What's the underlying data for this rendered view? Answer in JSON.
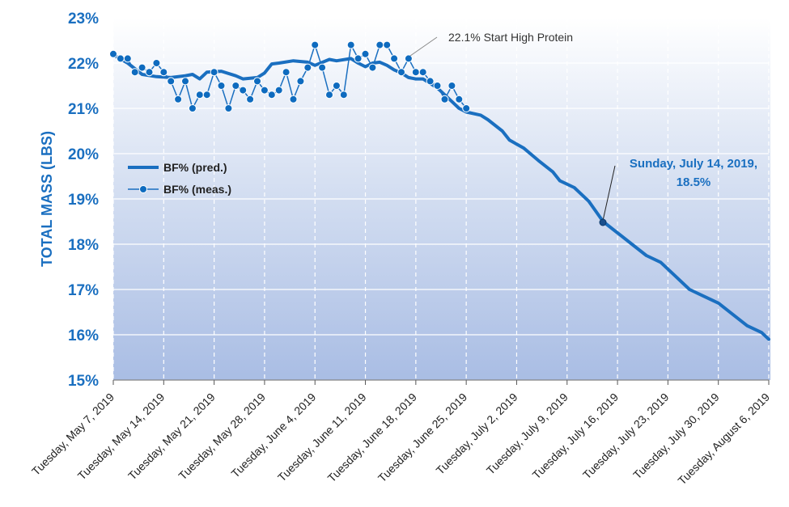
{
  "chart_data": {
    "type": "line",
    "ylabel": "TOTAL MASS (LBS)",
    "ylim": [
      15,
      23
    ],
    "yticks": [
      "15%",
      "16%",
      "17%",
      "18%",
      "19%",
      "20%",
      "21%",
      "22%",
      "23%"
    ],
    "xlim": [
      "2019-05-07",
      "2019-08-06"
    ],
    "xticks": [
      "Tuesday, May 7, 2019",
      "Tuesday, May 14, 2019",
      "Tuesday, May 21, 2019",
      "Tuesday, May 28, 2019",
      "Tuesday, June 4, 2019",
      "Tuesday, June 11, 2019",
      "Tuesday, June 18, 2019",
      "Tuesday, June 25, 2019",
      "Tuesday, July 2, 2019",
      "Tuesday, July 9, 2019",
      "Tuesday, July 16, 2019",
      "Tuesday, July 23, 2019",
      "Tuesday, July 30, 2019",
      "Tuesday, August 6, 2019"
    ],
    "grid": true,
    "legend_position": "left",
    "colors": {
      "series": "#1a6fc0",
      "marker": "#0e6bbf",
      "text_accent": "#1a6fc0"
    },
    "series": [
      {
        "name": "BF% (pred.)",
        "style": "line",
        "points": [
          [
            "2019-05-07",
            22.18
          ],
          [
            "2019-05-09",
            22.0
          ],
          [
            "2019-05-11",
            21.75
          ],
          [
            "2019-05-13",
            21.7
          ],
          [
            "2019-05-15",
            21.68
          ],
          [
            "2019-05-17",
            21.72
          ],
          [
            "2019-05-18",
            21.75
          ],
          [
            "2019-05-19",
            21.65
          ],
          [
            "2019-05-20",
            21.8
          ],
          [
            "2019-05-22",
            21.82
          ],
          [
            "2019-05-24",
            21.72
          ],
          [
            "2019-05-25",
            21.65
          ],
          [
            "2019-05-27",
            21.68
          ],
          [
            "2019-05-28",
            21.78
          ],
          [
            "2019-05-29",
            21.98
          ],
          [
            "2019-05-30",
            22.0
          ],
          [
            "2019-06-01",
            22.05
          ],
          [
            "2019-06-03",
            22.02
          ],
          [
            "2019-06-04",
            21.95
          ],
          [
            "2019-06-06",
            22.08
          ],
          [
            "2019-06-07",
            22.05
          ],
          [
            "2019-06-09",
            22.1
          ],
          [
            "2019-06-10",
            22.0
          ],
          [
            "2019-06-11",
            21.92
          ],
          [
            "2019-06-12",
            22.0
          ],
          [
            "2019-06-13",
            22.02
          ],
          [
            "2019-06-14",
            21.95
          ],
          [
            "2019-06-15",
            21.85
          ],
          [
            "2019-06-16",
            21.78
          ],
          [
            "2019-06-17",
            21.68
          ],
          [
            "2019-06-18",
            21.65
          ],
          [
            "2019-06-19",
            21.65
          ],
          [
            "2019-06-20",
            21.55
          ],
          [
            "2019-06-21",
            21.45
          ],
          [
            "2019-06-22",
            21.3
          ],
          [
            "2019-06-23",
            21.15
          ],
          [
            "2019-06-24",
            21.0
          ],
          [
            "2019-06-25",
            20.92
          ],
          [
            "2019-06-27",
            20.85
          ],
          [
            "2019-06-28",
            20.75
          ],
          [
            "2019-06-30",
            20.5
          ],
          [
            "2019-07-01",
            20.3
          ],
          [
            "2019-07-03",
            20.12
          ],
          [
            "2019-07-05",
            19.85
          ],
          [
            "2019-07-07",
            19.6
          ],
          [
            "2019-07-08",
            19.4
          ],
          [
            "2019-07-10",
            19.25
          ],
          [
            "2019-07-12",
            18.95
          ],
          [
            "2019-07-14",
            18.5
          ],
          [
            "2019-07-16",
            18.25
          ],
          [
            "2019-07-18",
            18.0
          ],
          [
            "2019-07-20",
            17.75
          ],
          [
            "2019-07-22",
            17.6
          ],
          [
            "2019-07-24",
            17.3
          ],
          [
            "2019-07-26",
            17.0
          ],
          [
            "2019-07-28",
            16.85
          ],
          [
            "2019-07-30",
            16.7
          ],
          [
            "2019-08-01",
            16.45
          ],
          [
            "2019-08-03",
            16.2
          ],
          [
            "2019-08-05",
            16.05
          ],
          [
            "2019-08-06",
            15.9
          ]
        ]
      },
      {
        "name": "BF% (meas.)",
        "style": "line+markers",
        "points": [
          [
            "2019-05-07",
            22.2
          ],
          [
            "2019-05-08",
            22.1
          ],
          [
            "2019-05-09",
            22.1
          ],
          [
            "2019-05-10",
            21.8
          ],
          [
            "2019-05-11",
            21.9
          ],
          [
            "2019-05-12",
            21.8
          ],
          [
            "2019-05-13",
            22.0
          ],
          [
            "2019-05-14",
            21.8
          ],
          [
            "2019-05-15",
            21.6
          ],
          [
            "2019-05-16",
            21.2
          ],
          [
            "2019-05-17",
            21.6
          ],
          [
            "2019-05-18",
            21.0
          ],
          [
            "2019-05-19",
            21.3
          ],
          [
            "2019-05-20",
            21.3
          ],
          [
            "2019-05-21",
            21.8
          ],
          [
            "2019-05-22",
            21.5
          ],
          [
            "2019-05-23",
            21.0
          ],
          [
            "2019-05-24",
            21.5
          ],
          [
            "2019-05-25",
            21.4
          ],
          [
            "2019-05-26",
            21.2
          ],
          [
            "2019-05-27",
            21.6
          ],
          [
            "2019-05-28",
            21.4
          ],
          [
            "2019-05-29",
            21.3
          ],
          [
            "2019-05-30",
            21.4
          ],
          [
            "2019-05-31",
            21.8
          ],
          [
            "2019-06-01",
            21.2
          ],
          [
            "2019-06-02",
            21.6
          ],
          [
            "2019-06-03",
            21.9
          ],
          [
            "2019-06-04",
            22.4
          ],
          [
            "2019-06-05",
            21.9
          ],
          [
            "2019-06-06",
            21.3
          ],
          [
            "2019-06-07",
            21.5
          ],
          [
            "2019-06-08",
            21.3
          ],
          [
            "2019-06-09",
            22.4
          ],
          [
            "2019-06-10",
            22.1
          ],
          [
            "2019-06-11",
            22.2
          ],
          [
            "2019-06-12",
            21.9
          ],
          [
            "2019-06-13",
            22.4
          ],
          [
            "2019-06-14",
            22.4
          ],
          [
            "2019-06-15",
            22.1
          ],
          [
            "2019-06-16",
            21.8
          ],
          [
            "2019-06-17",
            22.1
          ],
          [
            "2019-06-18",
            21.8
          ],
          [
            "2019-06-19",
            21.8
          ],
          [
            "2019-06-20",
            21.6
          ],
          [
            "2019-06-21",
            21.5
          ],
          [
            "2019-06-22",
            21.2
          ],
          [
            "2019-06-23",
            21.5
          ],
          [
            "2019-06-24",
            21.2
          ],
          [
            "2019-06-25",
            21.0
          ]
        ]
      }
    ],
    "annotations": [
      {
        "text": "22.1% Start High Protein",
        "x": "2019-06-17",
        "y": 22.1
      },
      {
        "text_line1": "Sunday, July 14, 2019,",
        "text_line2": "18.5%",
        "x": "2019-07-14",
        "y": 18.5
      }
    ]
  }
}
